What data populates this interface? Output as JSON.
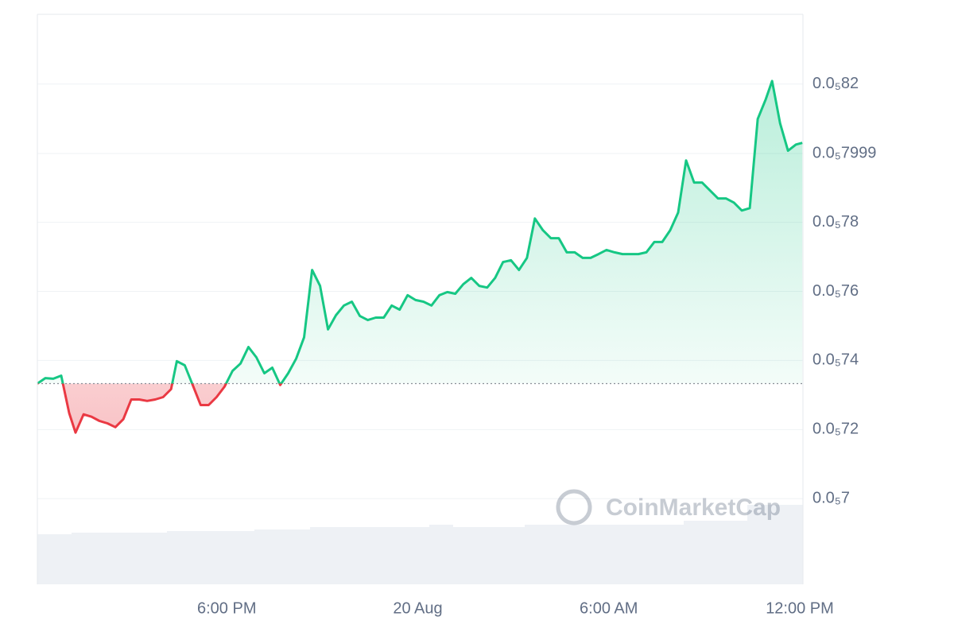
{
  "chart_data": {
    "type": "line",
    "watermark": "CoinMarketCap",
    "x": [
      12.05,
      12.3,
      12.55,
      12.8,
      13.05,
      13.25,
      13.5,
      13.75,
      14.0,
      14.25,
      14.5,
      14.75,
      15.0,
      15.25,
      15.5,
      15.75,
      16.0,
      16.25,
      16.43,
      16.68,
      16.93,
      17.18,
      17.43,
      17.68,
      17.93,
      18.18,
      18.43,
      18.68,
      18.93,
      19.18,
      19.43,
      19.68,
      19.93,
      20.18,
      20.43,
      20.68,
      20.93,
      21.18,
      21.43,
      21.68,
      21.93,
      22.18,
      22.43,
      22.68,
      22.93,
      23.18,
      23.43,
      23.68,
      23.93,
      24.18,
      24.43,
      24.68,
      24.93,
      25.18,
      25.43,
      25.68,
      25.93,
      26.18,
      26.43,
      26.68,
      26.93,
      27.18,
      27.43,
      27.68,
      27.93,
      28.18,
      28.43,
      28.68,
      28.93,
      29.18,
      29.43,
      29.68,
      29.93,
      30.18,
      30.43,
      30.68,
      30.93,
      31.18,
      31.43,
      31.68,
      31.93,
      32.18,
      32.43,
      32.68,
      32.93,
      33.18,
      33.43,
      33.68,
      33.93,
      34.18,
      34.43,
      34.68,
      34.93,
      35.13,
      35.38,
      35.63,
      35.88,
      36.08
    ],
    "series": [
      {
        "up_color": "#16c784",
        "down_color": "#ea3943",
        "values": [
          7.333e-06,
          7.349e-06,
          7.347e-06,
          7.356e-06,
          7.248e-06,
          7.191e-06,
          7.244e-06,
          7.237e-06,
          7.225e-06,
          7.218e-06,
          7.207e-06,
          7.23e-06,
          7.287e-06,
          7.287e-06,
          7.283e-06,
          7.287e-06,
          7.294e-06,
          7.317e-06,
          7.398e-06,
          7.386e-06,
          7.329e-06,
          7.271e-06,
          7.271e-06,
          7.294e-06,
          7.324e-06,
          7.37e-06,
          7.391e-06,
          7.439e-06,
          7.409e-06,
          7.363e-06,
          7.379e-06,
          7.329e-06,
          7.363e-06,
          7.405e-06,
          7.467e-06,
          7.662e-06,
          7.616e-06,
          7.49e-06,
          7.531e-06,
          7.559e-06,
          7.57e-06,
          7.529e-06,
          7.517e-06,
          7.524e-06,
          7.524e-06,
          7.559e-06,
          7.547e-06,
          7.589e-06,
          7.575e-06,
          7.57e-06,
          7.559e-06,
          7.589e-06,
          7.598e-06,
          7.593e-06,
          7.621e-06,
          7.639e-06,
          7.616e-06,
          7.611e-06,
          7.639e-06,
          7.685e-06,
          7.69e-06,
          7.662e-06,
          7.697e-06,
          7.811e-06,
          7.777e-06,
          7.754e-06,
          7.754e-06,
          7.713e-06,
          7.713e-06,
          7.697e-06,
          7.697e-06,
          7.708e-06,
          7.72e-06,
          7.713e-06,
          7.708e-06,
          7.708e-06,
          7.708e-06,
          7.713e-06,
          7.743e-06,
          7.743e-06,
          7.777e-06,
          7.828e-06,
          7.979e-06,
          7.915e-06,
          7.915e-06,
          7.892e-06,
          7.869e-06,
          7.869e-06,
          7.857e-06,
          7.834e-06,
          7.841e-06,
          8.099e-06,
          8.156e-06,
          8.209e-06,
          8.087e-06,
          8.007e-06,
          8.025e-06,
          8.03e-06
        ]
      }
    ],
    "baseline": 7.333e-06,
    "xlim": [
      12.05,
      36.1
    ],
    "xticks": [
      {
        "value": 18,
        "label": "6:00 PM"
      },
      {
        "value": 24,
        "label": "20 Aug"
      },
      {
        "value": 30,
        "label": "6:00 AM"
      },
      {
        "value": 36,
        "label": "12:00 PM"
      }
    ],
    "ylim": [
      6.752e-06,
      8.402e-06
    ],
    "yticks": [
      {
        "value": 7e-06,
        "label": "0.0₅7"
      },
      {
        "value": 7.2e-06,
        "label": "0.0₅72"
      },
      {
        "value": 7.4e-06,
        "label": "0.0₅74"
      },
      {
        "value": 7.6e-06,
        "label": "0.0₅76"
      },
      {
        "value": 7.8e-06,
        "label": "0.0₅78"
      },
      {
        "value": 7.999e-06,
        "label": "0.0₅7999"
      },
      {
        "value": 8.2e-06,
        "label": "0.0₅82"
      }
    ],
    "grid": true
  }
}
